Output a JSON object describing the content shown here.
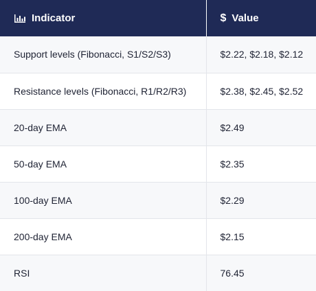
{
  "header": {
    "indicator_label": "Indicator",
    "value_label": "Value",
    "indicator_icon": "bar-chart-icon",
    "value_icon": "dollar-icon",
    "background_color": "#1f2a56"
  },
  "rows": [
    {
      "indicator": "Support levels (Fibonacci, S1/S2/S3)",
      "value": "$2.22, $2.18, $2.12"
    },
    {
      "indicator": "Resistance levels (Fibonacci, R1/R2/R3)",
      "value": "$2.38, $2.45, $2.52"
    },
    {
      "indicator": "20-day EMA",
      "value": "$2.49"
    },
    {
      "indicator": "50-day EMA",
      "value": "$2.35"
    },
    {
      "indicator": "100-day EMA",
      "value": "$2.29"
    },
    {
      "indicator": "200-day EMA",
      "value": "$2.15"
    },
    {
      "indicator": "RSI",
      "value": "76.45"
    }
  ]
}
